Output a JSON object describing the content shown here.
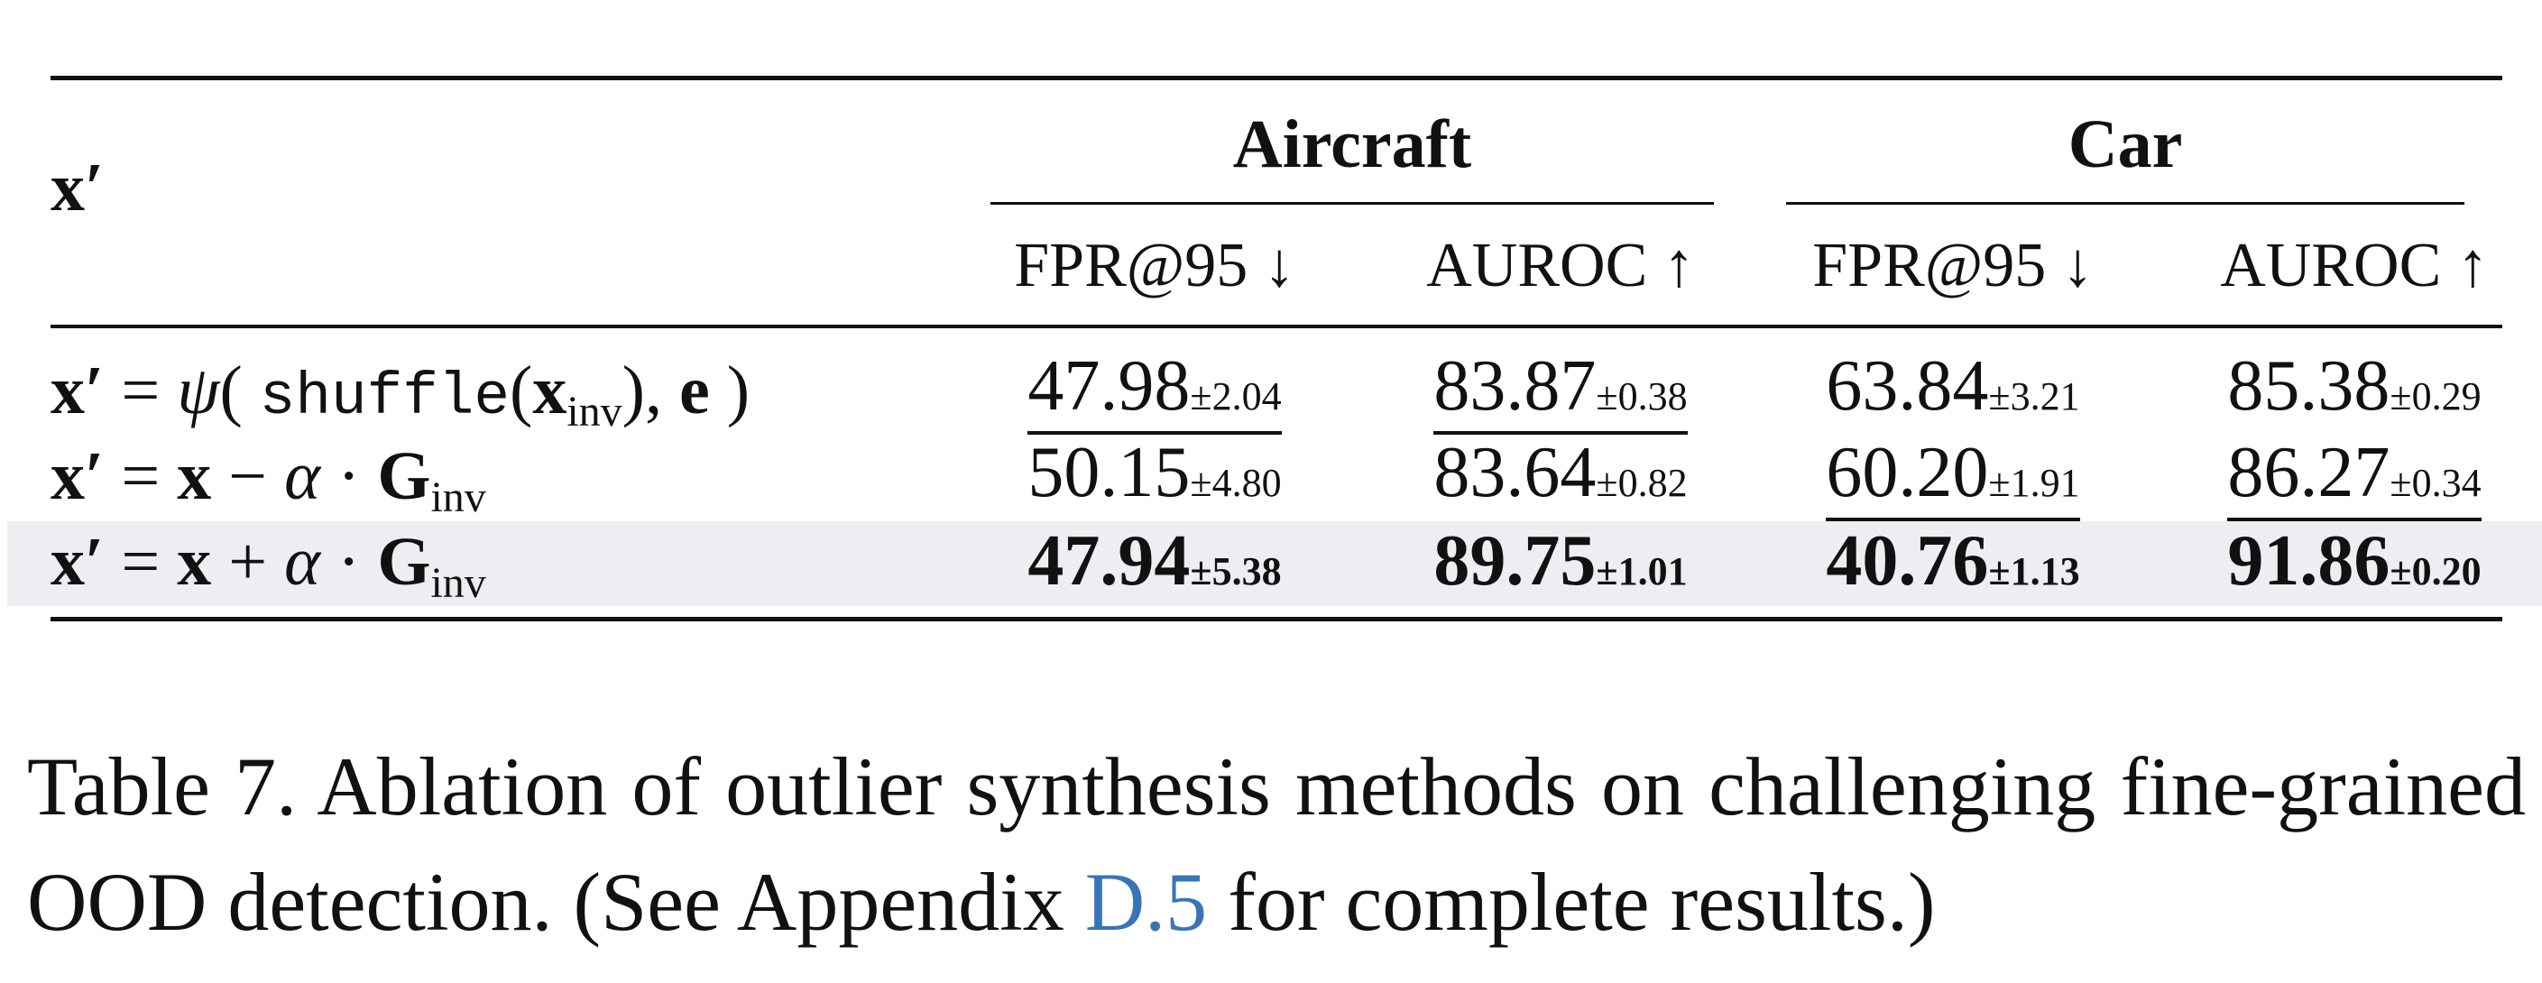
{
  "table": {
    "header": {
      "row_label": "x′",
      "groups": [
        {
          "name": "Aircraft",
          "cols": [
            "FPR@95 ↓",
            "AUROC ↑"
          ]
        },
        {
          "name": "Car",
          "cols": [
            "FPR@95 ↓",
            "AUROC ↑"
          ]
        }
      ]
    },
    "rows": [
      {
        "method": {
          "lhs": "x",
          "prime": "′",
          "eq": " = ",
          "psi": "ψ",
          "open": "( ",
          "fn": "shuffle",
          "paren_open": "(",
          "x": "x",
          "inv": "inv",
          "paren_close": ")",
          "comma": ", ",
          "e": "e",
          "close": " )"
        },
        "cells": [
          {
            "value": "47.98",
            "std": "±2.04",
            "underline": true,
            "bold": false
          },
          {
            "value": "83.87",
            "std": "±0.38",
            "underline": true,
            "bold": false
          },
          {
            "value": "63.84",
            "std": "±3.21",
            "underline": false,
            "bold": false
          },
          {
            "value": "85.38",
            "std": "±0.29",
            "underline": false,
            "bold": false
          }
        ]
      },
      {
        "method": {
          "lhs": "x",
          "prime": "′",
          "eq": " = ",
          "x": "x",
          "op": " − ",
          "alpha": "α",
          "dot": " · ",
          "G": "G",
          "inv": "inv"
        },
        "cells": [
          {
            "value": "50.15",
            "std": "±4.80",
            "underline": false,
            "bold": false
          },
          {
            "value": "83.64",
            "std": "±0.82",
            "underline": false,
            "bold": false
          },
          {
            "value": "60.20",
            "std": "±1.91",
            "underline": true,
            "bold": false
          },
          {
            "value": "86.27",
            "std": "±0.34",
            "underline": true,
            "bold": false
          }
        ]
      },
      {
        "method": {
          "lhs": "x",
          "prime": "′",
          "eq": " = ",
          "x": "x",
          "op": " + ",
          "alpha": "α",
          "dot": " · ",
          "G": "G",
          "inv": "inv"
        },
        "highlighted": true,
        "cells": [
          {
            "value": "47.94",
            "std": "±5.38",
            "underline": false,
            "bold": true
          },
          {
            "value": "89.75",
            "std": "±1.01",
            "underline": false,
            "bold": true
          },
          {
            "value": "40.76",
            "std": "±1.13",
            "underline": false,
            "bold": true
          },
          {
            "value": "91.86",
            "std": "±0.20",
            "underline": false,
            "bold": true
          }
        ]
      }
    ]
  },
  "caption": {
    "before": "Table 7. Ablation of outlier synthesis methods on challenging fine-grained OOD detection. (See Appendix ",
    "link": "D.5",
    "after": " for complete results.)"
  },
  "colors": {
    "link": "#3a74b8",
    "highlight": "#eeeef2"
  }
}
